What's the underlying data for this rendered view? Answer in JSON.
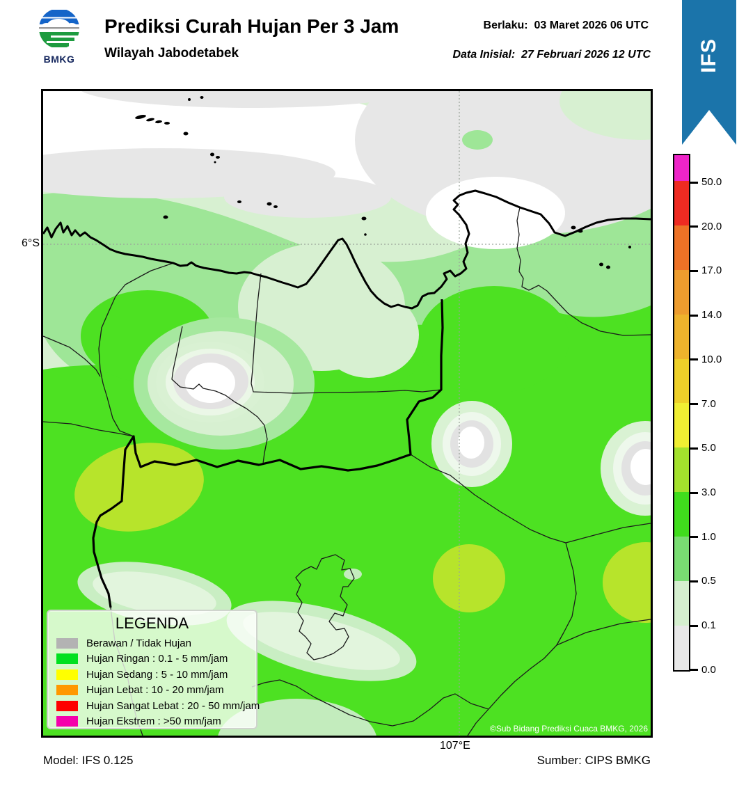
{
  "header": {
    "logo_text": "BMKG",
    "title": "Prediksi Curah Hujan Per 3 Jam",
    "subtitle": "Wilayah Jabodetabek",
    "valid_line": "Berlaku:  03 Maret 2026 06 UTC",
    "init_line": "Data Inisial:  27 Februari 2026 12 UTC",
    "model_badge": "IFS",
    "badge_color": "#1b74aa"
  },
  "map": {
    "lat_label": "6°S",
    "lon_label": "107°E",
    "copyright": "©Sub Bidang Prediksi Cuaca BMKG, 2026"
  },
  "legend": {
    "title": "LEGENDA",
    "items": [
      {
        "label": "Berawan / Tidak Hujan",
        "color": "#b3b3b3"
      },
      {
        "label": "Hujan Ringan : 0.1 - 5 mm/jam",
        "color": "#00e020"
      },
      {
        "label": "Hujan Sedang : 5 - 10 mm/jam",
        "color": "#ffff00"
      },
      {
        "label": "Hujan Lebat : 10 - 20 mm/jam",
        "color": "#ff9800"
      },
      {
        "label": "Hujan Sangat Lebat : 20 - 50 mm/jam",
        "color": "#fe0000"
      },
      {
        "label": "Hujan Ekstrem : >50 mm/jam",
        "color": "#f500ab"
      }
    ]
  },
  "colorbar": {
    "tick_labels": [
      "50.0",
      "20.0",
      "17.0",
      "14.0",
      "10.0",
      "7.0",
      "5.0",
      "3.0",
      "1.0",
      "0.5",
      "0.1",
      "0.0"
    ],
    "segment_colors_top_to_bottom": [
      "#ee25c8",
      "#ee2b22",
      "#ed7226",
      "#ed9c2e",
      "#eeb32c",
      "#eed029",
      "#f0ee33",
      "#a4e12d",
      "#40dd1d",
      "#79dd72",
      "#d5efcf",
      "#e8e8e8"
    ]
  },
  "footer": {
    "model": "Model: IFS 0.125",
    "source": "Sumber: CIPS BMKG"
  }
}
